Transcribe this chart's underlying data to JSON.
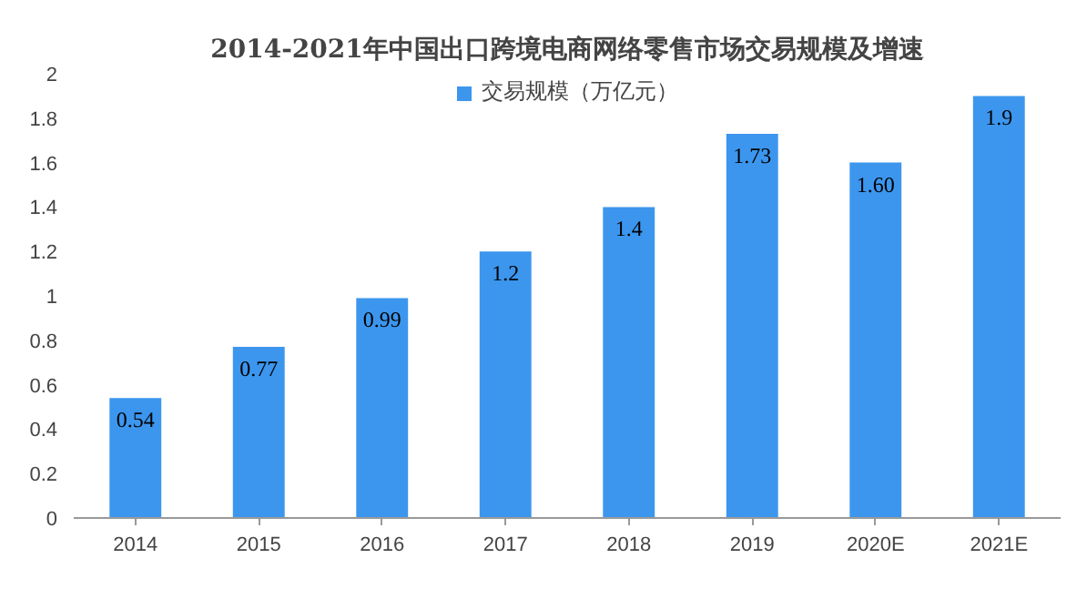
{
  "chart_data": {
    "type": "bar",
    "title": "2014-2021年中国出口跨境电商网络零售市场交易规模及增速",
    "categories": [
      "2014",
      "2015",
      "2016",
      "2017",
      "2018",
      "2019",
      "2020E",
      "2021E"
    ],
    "series": [
      {
        "name": "交易规模（万亿元）",
        "color": "#3c96ee",
        "values": [
          0.54,
          0.77,
          0.99,
          1.2,
          1.4,
          1.73,
          1.6,
          1.9
        ],
        "value_labels": [
          "0.54",
          "0.77",
          "0.99",
          "1.2",
          "1.4",
          "1.73",
          "1.60",
          "1.9"
        ]
      }
    ],
    "ylim": [
      0,
      2
    ],
    "yticks": [
      0,
      0.2,
      0.4,
      0.6,
      0.8,
      1,
      1.2,
      1.4,
      1.6,
      1.8,
      2
    ],
    "grid": false,
    "legend": "top"
  }
}
